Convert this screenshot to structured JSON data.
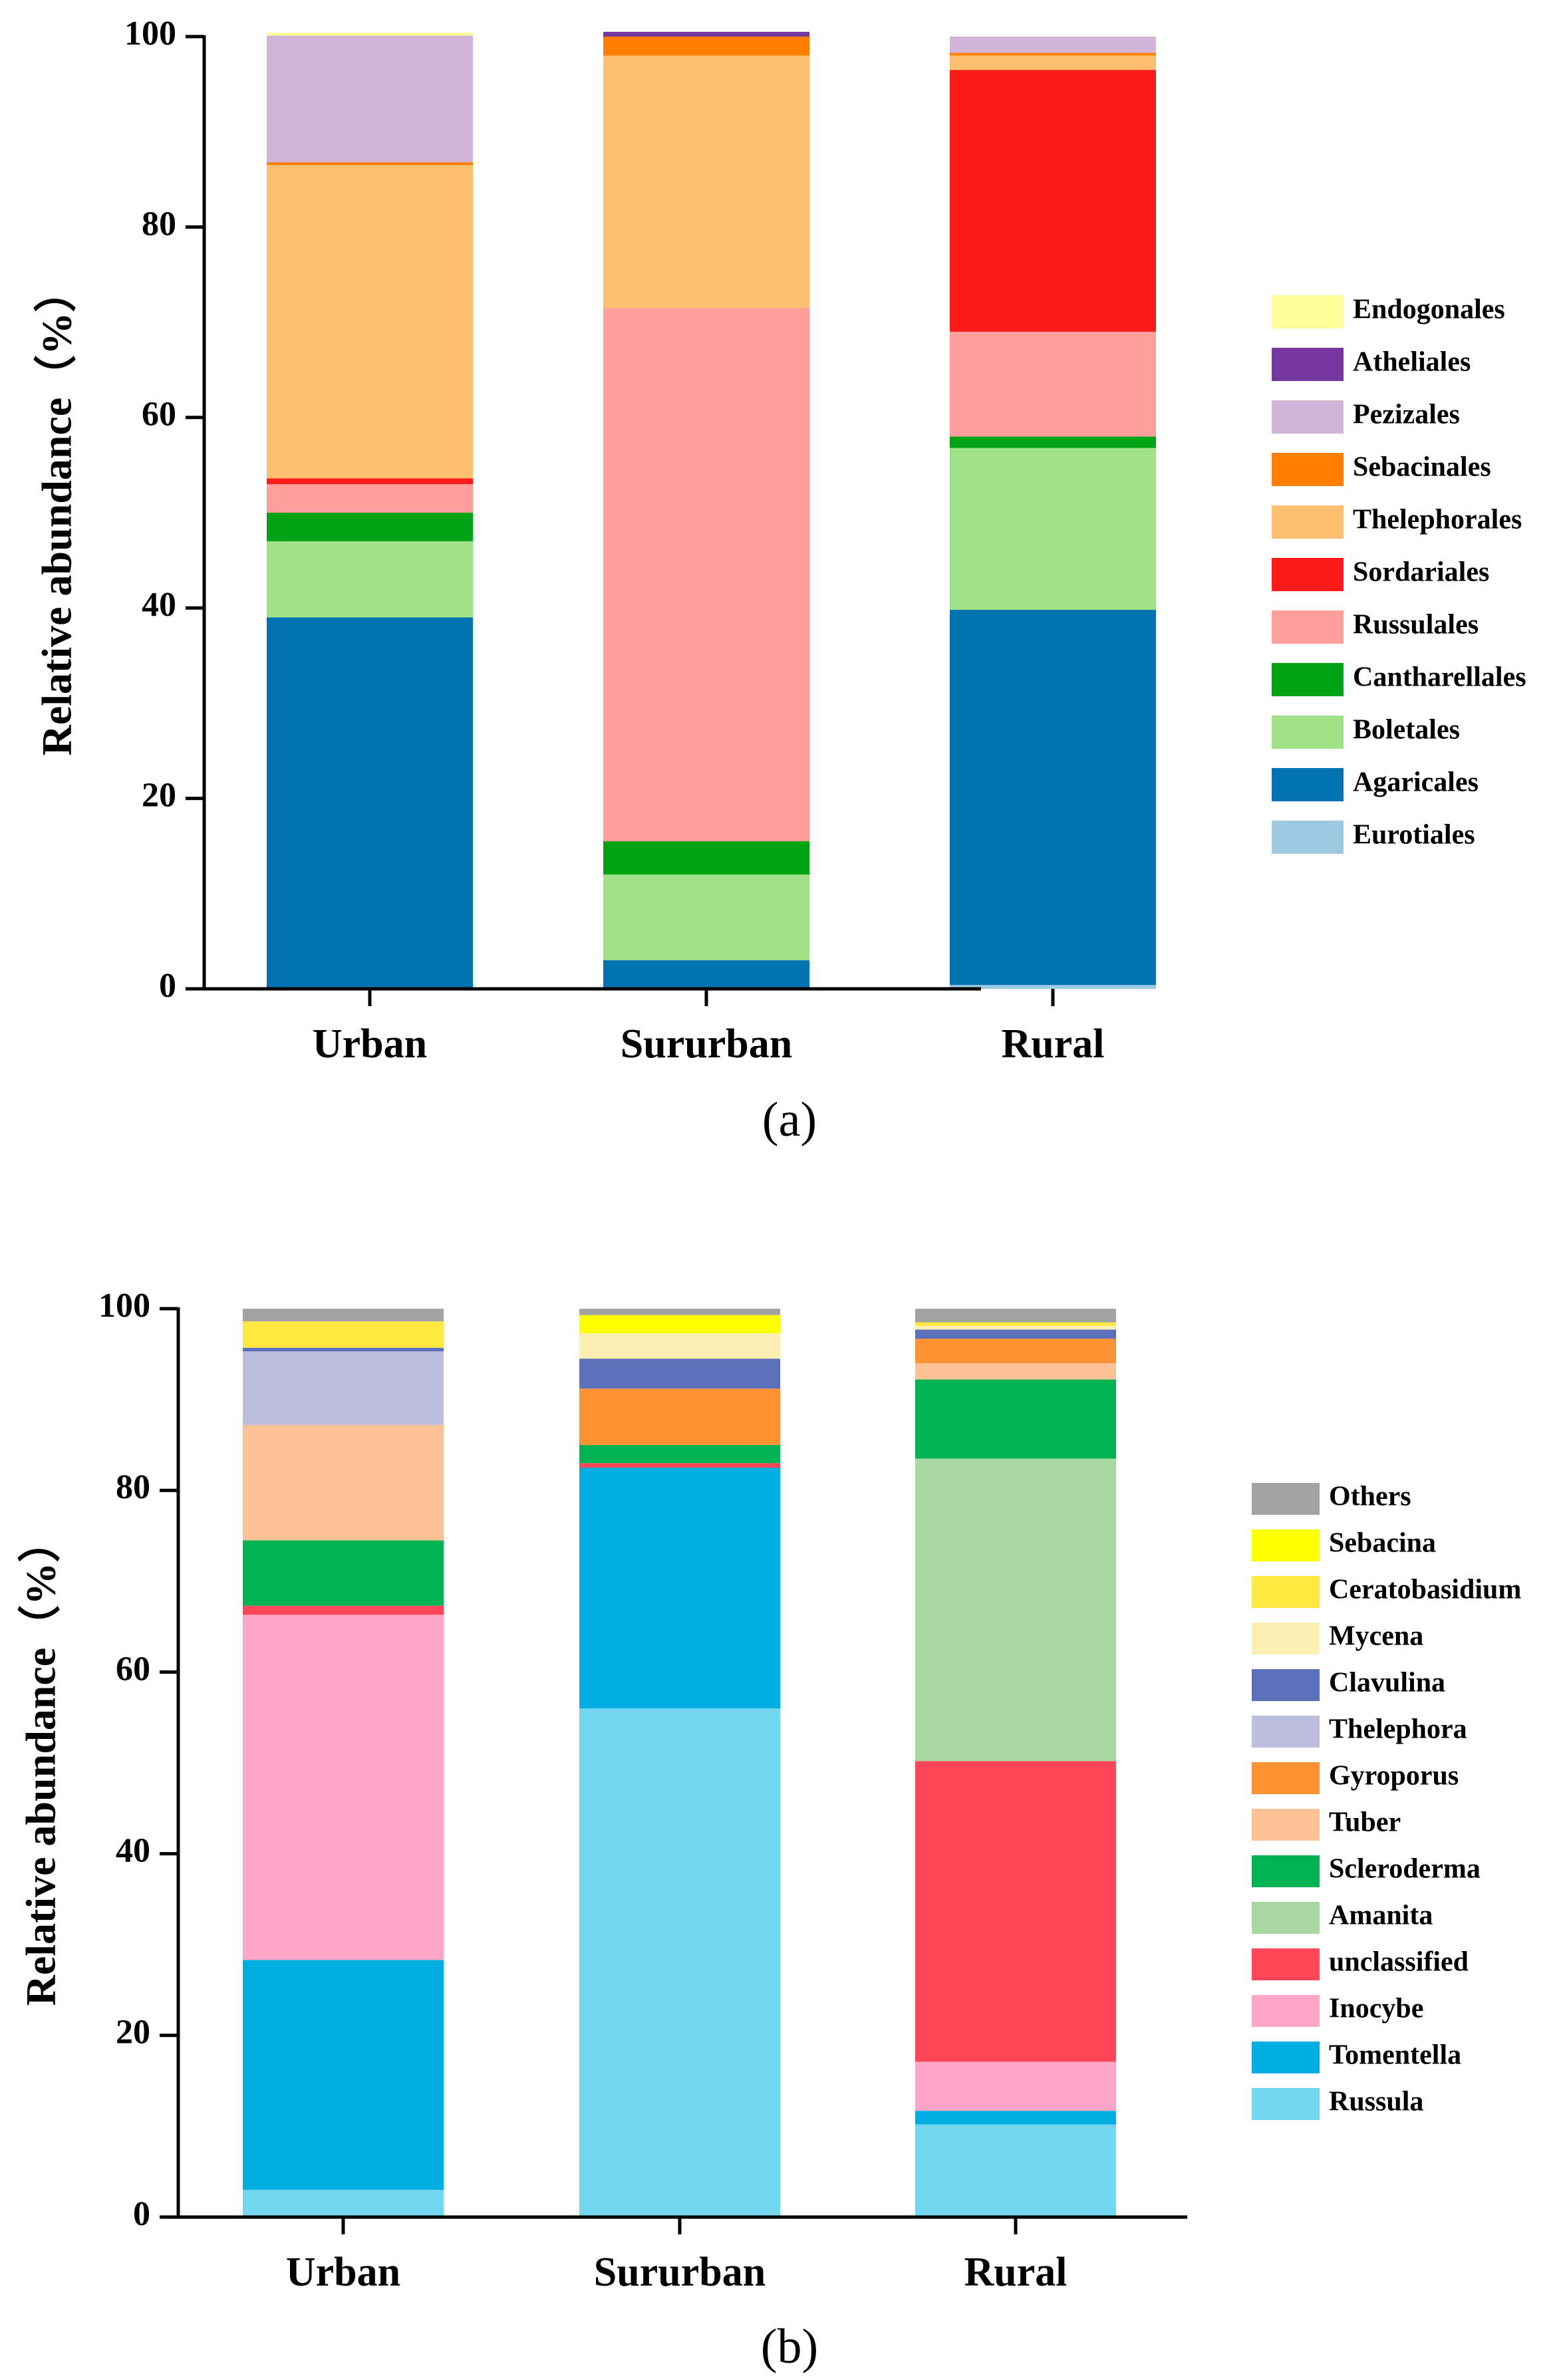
{
  "chart_data": [
    {
      "type": "bar",
      "stacked": true,
      "panel_label": "(a)",
      "categories": [
        "Urban",
        "Sururban",
        "Rural"
      ],
      "ylabel": "Relative abundance（%）",
      "ylim": [
        0,
        100
      ],
      "yticks": [
        "0",
        "20",
        "40",
        "60",
        "80",
        "100"
      ],
      "legend_position": "right",
      "series": [
        {
          "name": "Eurotiales",
          "color": "#9ecae1",
          "values": [
            0,
            0,
            0.4
          ]
        },
        {
          "name": "Agaricales",
          "color": "#0173b2",
          "values": [
            39,
            3,
            39.4
          ]
        },
        {
          "name": "Boletales",
          "color": "#a0e087",
          "values": [
            8,
            9,
            17
          ]
        },
        {
          "name": "Cantharellales",
          "color": "#00a313",
          "values": [
            3,
            3.5,
            1.2
          ]
        },
        {
          "name": "Russulales",
          "color": "#ff9e9b",
          "values": [
            3,
            56,
            11
          ]
        },
        {
          "name": "Sordariales",
          "color": "#ff1a1a",
          "values": [
            0.6,
            0,
            27.5
          ]
        },
        {
          "name": "Thelephorales",
          "color": "#ffbf6e",
          "values": [
            32.9,
            26.5,
            1.5
          ]
        },
        {
          "name": "Sebacinales",
          "color": "#ff8000",
          "values": [
            0.3,
            2,
            0.3
          ]
        },
        {
          "name": "Pezizales",
          "color": "#d3b4d9",
          "values": [
            13.3,
            0,
            1.7
          ]
        },
        {
          "name": "Atheliales",
          "color": "#7538a0",
          "values": [
            0,
            0.5,
            0
          ]
        },
        {
          "name": "Endogonales",
          "color": "#ffff99",
          "values": [
            0.3,
            0,
            0
          ]
        }
      ]
    },
    {
      "type": "bar",
      "stacked": true,
      "panel_label": "(b)",
      "categories": [
        "Urban",
        "Sururban",
        "Rural"
      ],
      "ylabel": "Relative abundance（%）",
      "ylim": [
        0,
        100
      ],
      "yticks": [
        "0",
        "20",
        "40",
        "60",
        "80",
        "100"
      ],
      "legend_position": "right",
      "series": [
        {
          "name": "Russula",
          "color": "#73d7ef",
          "values": [
            3,
            56,
            10.2
          ]
        },
        {
          "name": "Tomentella",
          "color": "#00aee4",
          "values": [
            25.3,
            26.5,
            1.5
          ]
        },
        {
          "name": "Inocybe",
          "color": "#ffa6c7",
          "values": [
            38,
            0,
            5.4
          ]
        },
        {
          "name": "unclassified",
          "color": "#ff4558",
          "values": [
            1,
            0.5,
            33.1
          ]
        },
        {
          "name": "Amanita",
          "color": "#a7d8a0",
          "values": [
            0,
            0,
            33.3
          ]
        },
        {
          "name": "Scleroderma",
          "color": "#00b353",
          "values": [
            7.2,
            2,
            8.7
          ]
        },
        {
          "name": "Tuber",
          "color": "#fcc195",
          "values": [
            12.7,
            0,
            1.8
          ]
        },
        {
          "name": "Gyroporus",
          "color": "#fd9233",
          "values": [
            0,
            6.2,
            2.7
          ]
        },
        {
          "name": "Thelephora",
          "color": "#bdbddf",
          "values": [
            8.1,
            0,
            0
          ]
        },
        {
          "name": "Clavulina",
          "color": "#5c6fbb",
          "values": [
            0.4,
            3.3,
            1
          ]
        },
        {
          "name": "Mycena",
          "color": "#fcefb3",
          "values": [
            0,
            2.8,
            0.4
          ]
        },
        {
          "name": "Ceratobasidium",
          "color": "#ffe940",
          "values": [
            2.9,
            0,
            0.4
          ]
        },
        {
          "name": "Sebacina",
          "color": "#ffff00",
          "values": [
            0,
            2,
            0
          ]
        },
        {
          "name": "Others",
          "color": "#a3a3a3",
          "values": [
            1.4,
            0.7,
            1.5
          ]
        }
      ]
    }
  ]
}
